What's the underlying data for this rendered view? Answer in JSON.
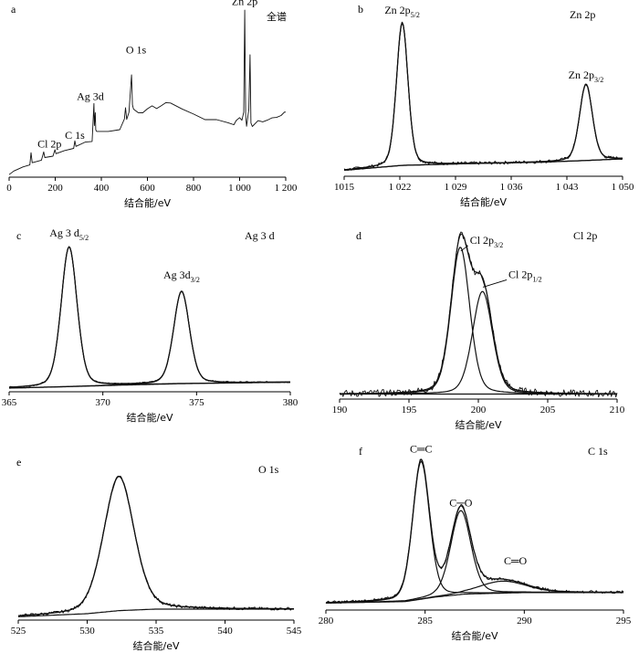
{
  "chart_data": [
    {
      "id": "a",
      "type": "line",
      "label": "a",
      "title": "全谱",
      "xlabel": "结合能/eV",
      "xlim": [
        0,
        1200
      ],
      "xticks": [
        "0",
        "200",
        "400",
        "600",
        "800",
        "1 000",
        "1 200"
      ],
      "tickvals": [
        0,
        200,
        400,
        600,
        800,
        1000,
        1200
      ],
      "ylim": [
        0,
        100
      ],
      "annotations": [
        {
          "text": "Zn 2p",
          "x": 1022,
          "y": 98
        },
        {
          "text": "O 1s",
          "x": 531,
          "y": 62
        },
        {
          "text": "Ag 3d",
          "x": 368,
          "y": 43
        },
        {
          "text": "Cl 2p",
          "x": 199,
          "y": 16
        },
        {
          "text": "C 1s",
          "x": 285,
          "y": 20
        }
      ],
      "series": [
        {
          "x": [
            0,
            20,
            60,
            90,
            95,
            100,
            140,
            150,
            155,
            190,
            199,
            203,
            240,
            280,
            285,
            290,
            330,
            360,
            368,
            370,
            374,
            376,
            380,
            430,
            480,
            500,
            505,
            510,
            520,
            531,
            535,
            540,
            560,
            580,
            600,
            620,
            640,
            660,
            680,
            700,
            750,
            800,
            850,
            900,
            950,
            975,
            985,
            1000,
            1010,
            1018,
            1022,
            1026,
            1030,
            1040,
            1045,
            1049,
            1055,
            1080,
            1100,
            1120,
            1140,
            1160,
            1180,
            1195,
            1200
          ],
          "y": [
            1,
            3,
            6,
            7,
            14,
            8,
            10,
            14,
            11,
            12,
            16,
            13,
            15,
            17,
            21,
            18,
            20,
            21,
            43,
            30,
            38,
            28,
            26,
            26,
            28,
            34,
            40,
            34,
            38,
            60,
            42,
            40,
            38,
            37,
            40,
            42,
            40,
            42,
            44,
            43,
            40,
            37,
            34,
            33,
            32,
            30,
            33,
            35,
            33,
            38,
            98,
            36,
            30,
            40,
            72,
            32,
            30,
            33,
            32,
            33,
            34,
            35,
            36,
            38,
            38
          ]
        }
      ]
    },
    {
      "id": "b",
      "type": "line",
      "label": "b",
      "title": "Zn 2p",
      "xlabel": "结合能/eV",
      "xlim": [
        1015,
        1050
      ],
      "xticks": [
        "1015",
        "1 022",
        "1 029",
        "1 036",
        "1 043",
        "1 050"
      ],
      "tickvals": [
        1015,
        1022,
        1029,
        1036,
        1043,
        1050
      ],
      "ylim": [
        0,
        100
      ],
      "annotations": [
        {
          "text": "Zn 2p",
          "sub": "5/2",
          "x": 1022.3,
          "y": 95
        },
        {
          "text": "Zn 2p",
          "sub": "3/2",
          "x": 1045.4,
          "y": 55
        }
      ],
      "background": {
        "x": [
          1015,
          1022.3,
          1030,
          1040,
          1045.4,
          1050
        ],
        "y": [
          2,
          5,
          6,
          7,
          8,
          9
        ]
      },
      "peaks": [
        {
          "name": "Zn 2p5/2",
          "center": 1022.3,
          "height": 88,
          "fwhm": 1.7
        },
        {
          "name": "Zn 2p3/2",
          "center": 1045.4,
          "height": 47,
          "fwhm": 1.9
        }
      ]
    },
    {
      "id": "c",
      "type": "line",
      "label": "c",
      "title": "Ag 3 d",
      "xlabel": "结合能/eV",
      "xlim": [
        365,
        380
      ],
      "xticks": [
        "365",
        "370",
        "375",
        "380"
      ],
      "tickvals": [
        365,
        370,
        375,
        380
      ],
      "ylim": [
        0,
        100
      ],
      "annotations": [
        {
          "text": "Ag 3 d",
          "sub": "5/2",
          "x": 368.2,
          "y": 97
        },
        {
          "text": "Ag 3d",
          "sub": "3/2",
          "x": 374.2,
          "y": 70
        }
      ],
      "background": {
        "x": [
          365,
          368.2,
          371,
          374.2,
          380
        ],
        "y": [
          0,
          1,
          2,
          3,
          4
        ]
      },
      "peaks": [
        {
          "name": "Ag 3d5/2",
          "center": 368.2,
          "height": 94,
          "fwhm": 1.0
        },
        {
          "name": "Ag 3d3/2",
          "center": 374.2,
          "height": 62,
          "fwhm": 1.0
        }
      ]
    },
    {
      "id": "d",
      "type": "line",
      "label": "d",
      "title": "Cl 2p",
      "xlabel": "结合能/eV",
      "xlim": [
        190,
        210
      ],
      "xticks": [
        "190",
        "195",
        "200",
        "205",
        "210"
      ],
      "tickvals": [
        190,
        195,
        200,
        205,
        210
      ],
      "ylim": [
        0,
        100
      ],
      "annotations": [
        {
          "text": "Cl 2p",
          "sub": "3/2",
          "x": 198.6,
          "y": 96
        },
        {
          "text": "Cl 2p",
          "sub": "1/2",
          "x": 200.2,
          "y": 72
        }
      ],
      "background": {
        "x": [
          190,
          210
        ],
        "y": [
          2,
          2
        ]
      },
      "peaks": [
        {
          "name": "Cl 2p3/2",
          "center": 198.7,
          "height": 93,
          "fwhm": 1.6
        },
        {
          "name": "Cl 2p1/2",
          "center": 200.3,
          "height": 65,
          "fwhm": 1.7
        }
      ]
    },
    {
      "id": "e",
      "type": "line",
      "label": "e",
      "title": "O 1s",
      "xlabel": "结合能/eV",
      "xlim": [
        525,
        545
      ],
      "xticks": [
        "525",
        "530",
        "535",
        "540",
        "545"
      ],
      "tickvals": [
        525,
        530,
        535,
        540,
        545
      ],
      "ylim": [
        0,
        100
      ],
      "annotations": [],
      "background": {
        "x": [
          525,
          530,
          532.3,
          535,
          545
        ],
        "y": [
          1,
          3,
          5,
          6,
          6
        ]
      },
      "peaks": [
        {
          "name": "O 1s",
          "center": 532.3,
          "height": 88,
          "fwhm": 2.6
        }
      ]
    },
    {
      "id": "f",
      "type": "line",
      "label": "f",
      "title": "C 1s",
      "xlabel": "结合能/eV",
      "xlim": [
        280,
        295
      ],
      "xticks": [
        "280",
        "285",
        "290",
        "295"
      ],
      "tickvals": [
        280,
        285,
        290,
        295
      ],
      "ylim": [
        0,
        100
      ],
      "annotations": [
        {
          "text": "C═C",
          "x": 284.8,
          "y": 98
        },
        {
          "text": "C─O",
          "x": 286.8,
          "y": 62
        },
        {
          "text": "C═O",
          "x": 289.0,
          "y": 22
        }
      ],
      "background": {
        "x": [
          280,
          284,
          285.5,
          287,
          290,
          295
        ],
        "y": [
          1,
          2,
          5,
          7,
          8,
          8
        ]
      },
      "peaks": [
        {
          "name": "C=C",
          "center": 284.8,
          "height": 92,
          "fwhm": 1.0
        },
        {
          "name": "C-O",
          "center": 286.8,
          "height": 56,
          "fwhm": 1.2
        },
        {
          "name": "C=O",
          "center": 288.9,
          "height": 8,
          "fwhm": 2.8
        }
      ]
    }
  ]
}
